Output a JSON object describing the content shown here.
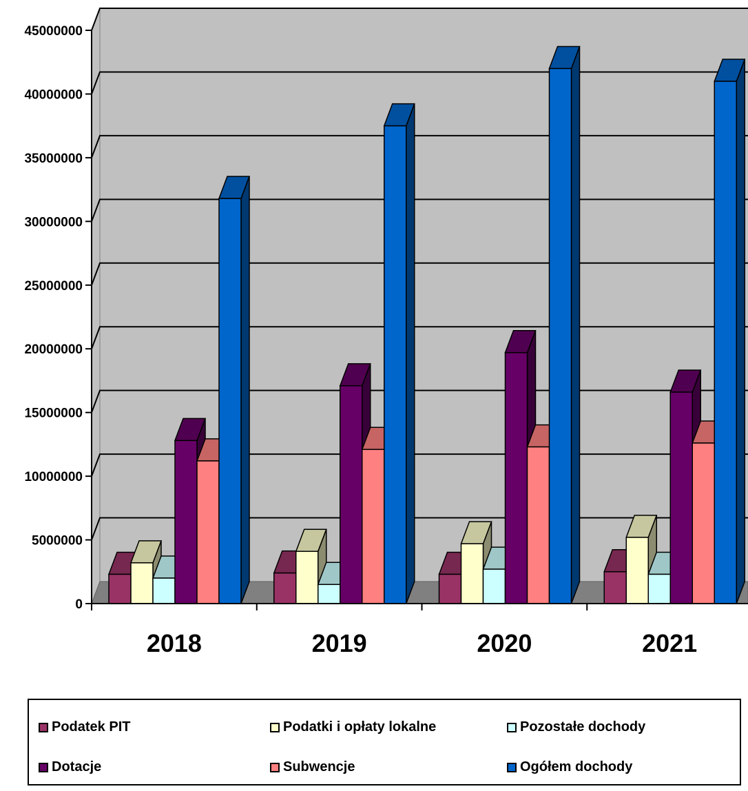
{
  "chart_data": {
    "type": "bar",
    "title": "",
    "xlabel": "",
    "ylabel": "",
    "categories": [
      "2018",
      "2019",
      "2020",
      "2021"
    ],
    "y_ticks": [
      "0",
      "5000000",
      "10000000",
      "15000000",
      "20000000",
      "25000000",
      "30000000",
      "35000000",
      "40000000",
      "45000000"
    ],
    "ylim": [
      0,
      45000000
    ],
    "grid": true,
    "style": "3d-clustered-column",
    "legend_position": "bottom",
    "series": [
      {
        "name": "Podatek PIT",
        "color": "#993366",
        "values": [
          2300000,
          2400000,
          2300000,
          2500000
        ]
      },
      {
        "name": "Podatki i opłaty lokalne",
        "color": "#FFFFCC",
        "values": [
          3200000,
          4100000,
          4700000,
          5200000
        ]
      },
      {
        "name": "Pozostałe dochody",
        "color": "#CCFFFF",
        "values": [
          2000000,
          1500000,
          2700000,
          2300000
        ]
      },
      {
        "name": "Dotacje",
        "color": "#660066",
        "values": [
          12800000,
          17100000,
          19700000,
          16600000
        ]
      },
      {
        "name": "Subwencje",
        "color": "#FF8080",
        "values": [
          11200000,
          12100000,
          12300000,
          12600000
        ]
      },
      {
        "name": "Ogółem dochody",
        "color": "#0066CC",
        "values": [
          31800000,
          37500000,
          42000000,
          41000000
        ]
      }
    ]
  }
}
